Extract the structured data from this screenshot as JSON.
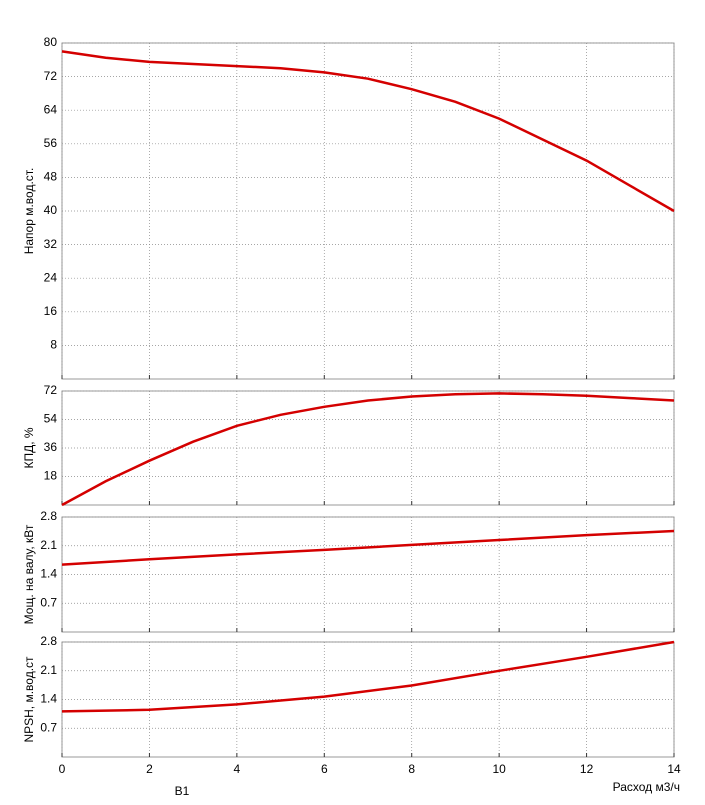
{
  "chart_data": [
    {
      "type": "line",
      "ylabel": "Напор м.вод.ст.",
      "x": [
        0,
        1,
        2,
        3,
        4,
        5,
        6,
        7,
        8,
        9,
        10,
        11,
        12,
        13,
        14
      ],
      "series": [
        {
          "name": "Напор",
          "color": "#d40000",
          "values": [
            78,
            76.5,
            75.5,
            75,
            74.5,
            74,
            73,
            71.5,
            69,
            66,
            62,
            57,
            52,
            46,
            40
          ]
        }
      ],
      "xlim": [
        0,
        14
      ],
      "xticks": [
        0,
        2,
        4,
        6,
        8,
        10,
        12,
        14
      ],
      "ylim": [
        0,
        80
      ],
      "yticks": [
        8,
        16,
        24,
        32,
        40,
        48,
        56,
        64,
        72,
        80
      ],
      "grid": true
    },
    {
      "type": "line",
      "ylabel": "КПД, %",
      "x": [
        0,
        1,
        2,
        3,
        4,
        5,
        6,
        7,
        8,
        9,
        10,
        11,
        12,
        13,
        14
      ],
      "series": [
        {
          "name": "КПД",
          "color": "#d40000",
          "values": [
            0,
            15,
            28,
            40,
            50,
            57,
            62,
            66,
            68.5,
            70,
            70.5,
            70,
            69,
            67.5,
            66
          ]
        }
      ],
      "xlim": [
        0,
        14
      ],
      "xticks": [
        0,
        2,
        4,
        6,
        8,
        10,
        12,
        14
      ],
      "ylim": [
        0,
        72
      ],
      "yticks": [
        18,
        36,
        54,
        72
      ],
      "grid": true
    },
    {
      "type": "line",
      "ylabel": "Мощ. на валу, кВт",
      "x": [
        0,
        2,
        4,
        6,
        8,
        10,
        12,
        14
      ],
      "series": [
        {
          "name": "Мощность",
          "color": "#d40000",
          "values": [
            1.64,
            1.77,
            1.89,
            2.0,
            2.12,
            2.24,
            2.36,
            2.46
          ]
        }
      ],
      "xlim": [
        0,
        14
      ],
      "xticks": [
        0,
        2,
        4,
        6,
        8,
        10,
        12,
        14
      ],
      "ylim": [
        0,
        2.8
      ],
      "yticks": [
        0.7,
        1.4,
        2.1,
        2.8
      ],
      "grid": true
    },
    {
      "type": "line",
      "ylabel": "NPSH, м.вод.ст",
      "xlabel": "Расход м3/ч",
      "annotation": "B1",
      "x": [
        0,
        2,
        4,
        6,
        8,
        10,
        12,
        14
      ],
      "series": [
        {
          "name": "NPSH",
          "color": "#d40000",
          "values": [
            1.11,
            1.15,
            1.28,
            1.47,
            1.74,
            2.1,
            2.44,
            2.8
          ]
        }
      ],
      "xlim": [
        0,
        14
      ],
      "xticks": [
        0,
        2,
        4,
        6,
        8,
        10,
        12,
        14
      ],
      "ylim": [
        0,
        2.8
      ],
      "yticks": [
        0.7,
        1.4,
        2.1,
        2.8
      ],
      "grid": true
    }
  ]
}
